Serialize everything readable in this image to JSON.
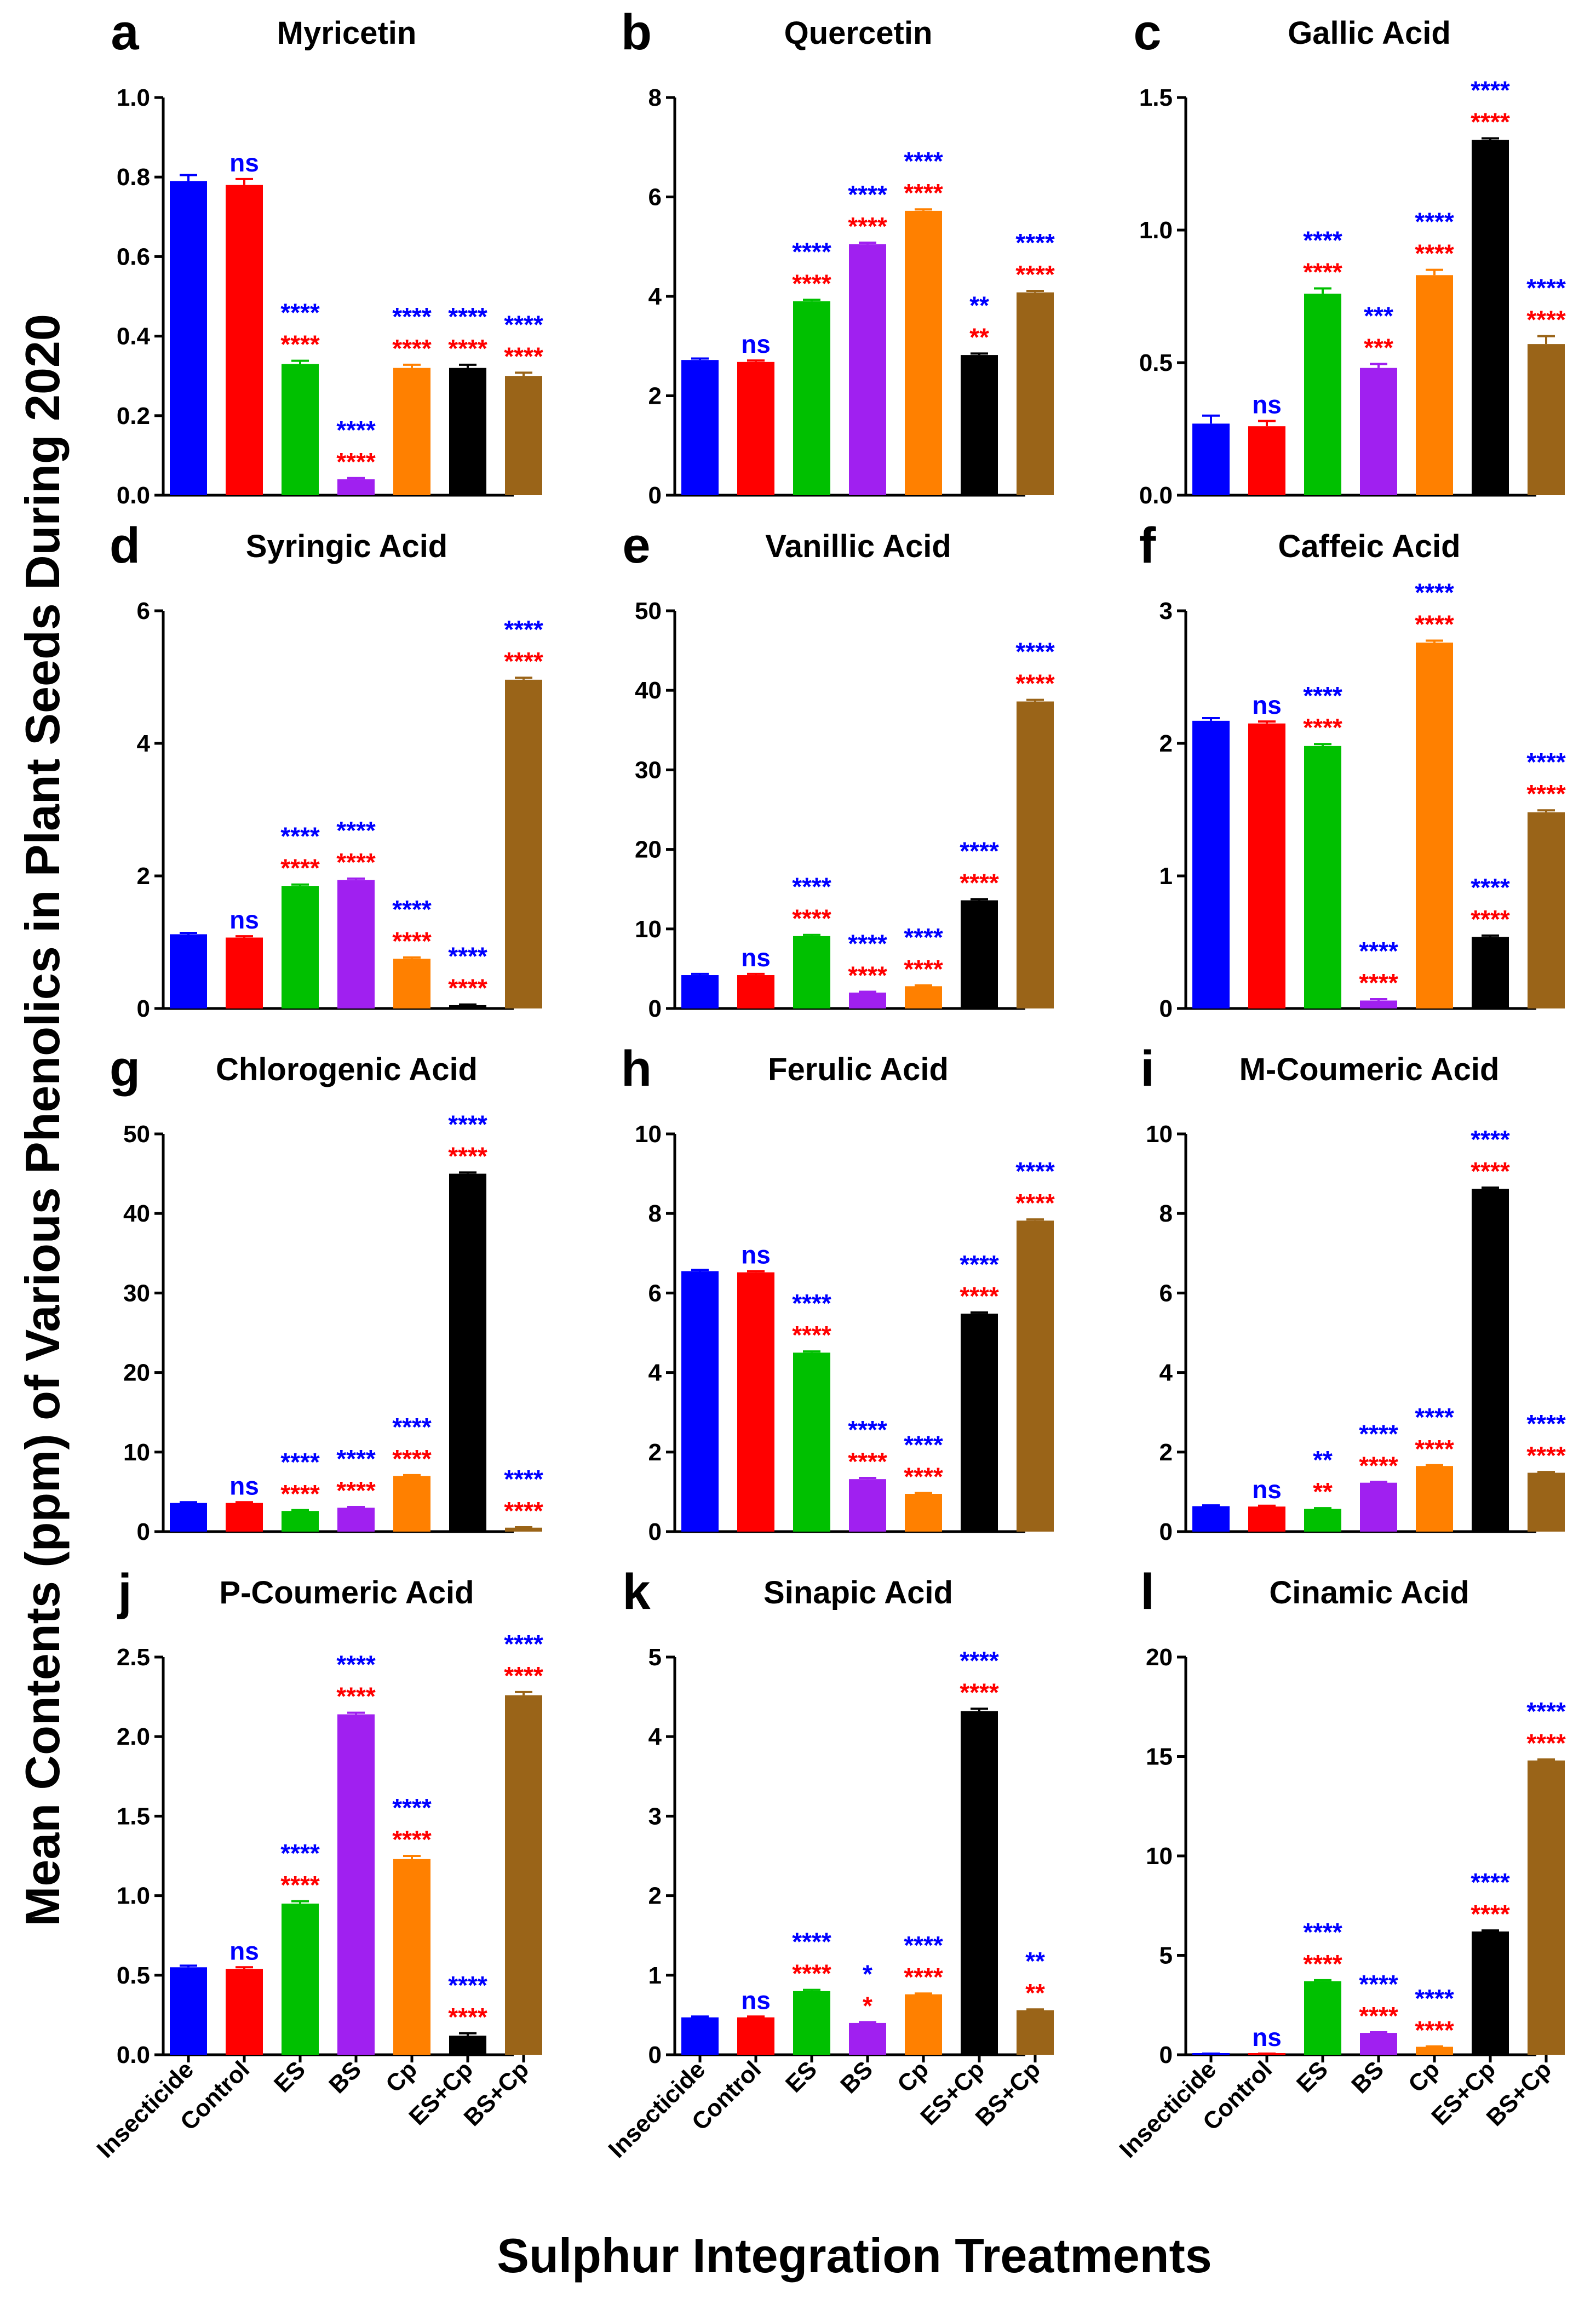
{
  "figure": {
    "ylabel": "Mean Contents (ppm) of Various Phenolics in Plant Seeds During 2020",
    "xlabel": "Sulphur Integration Treatments",
    "colors": {
      "bars": [
        "#0000ff",
        "#ff0000",
        "#00c000",
        "#a020f0",
        "#ff8000",
        "#000000",
        "#9a6418"
      ],
      "sig_top": "#0000ff",
      "sig_bottom": "#ff0000"
    }
  },
  "chart_data": [
    {
      "type": "bar",
      "label": "a",
      "title": "Myricetin",
      "categories": [
        "Insecticide",
        "Control",
        "ES",
        "BS",
        "Cp",
        "ES+Cp",
        "BS+Cp"
      ],
      "values": [
        0.79,
        0.78,
        0.33,
        0.04,
        0.32,
        0.32,
        0.3
      ],
      "errors": [
        0.015,
        0.015,
        0.008,
        0.003,
        0.008,
        0.008,
        0.008
      ],
      "ylim": [
        0,
        1.0
      ],
      "yticks": [
        "0.0",
        "0.2",
        "0.4",
        "0.6",
        "0.8",
        "1.0"
      ],
      "sig_top": [
        "",
        "ns",
        "****",
        "****",
        "****",
        "****",
        "****"
      ],
      "sig_bottom": [
        "",
        "",
        "****",
        "****",
        "****",
        "****",
        "****"
      ],
      "show_xticks": false
    },
    {
      "type": "bar",
      "label": "b",
      "title": "Quercetin",
      "categories": [
        "Insecticide",
        "Control",
        "ES",
        "BS",
        "Cp",
        "ES+Cp",
        "BS+Cp"
      ],
      "values": [
        2.72,
        2.68,
        3.9,
        5.05,
        5.72,
        2.82,
        4.08
      ],
      "errors": [
        0.03,
        0.03,
        0.03,
        0.03,
        0.03,
        0.03,
        0.03
      ],
      "ylim": [
        0,
        8
      ],
      "yticks": [
        "0",
        "2",
        "4",
        "6",
        "8"
      ],
      "sig_top": [
        "",
        "ns",
        "****",
        "****",
        "****",
        "**",
        "****"
      ],
      "sig_bottom": [
        "",
        "",
        "****",
        "****",
        "****",
        "**",
        "****"
      ],
      "show_xticks": false
    },
    {
      "type": "bar",
      "label": "c",
      "title": "Gallic Acid",
      "categories": [
        "Insecticide",
        "Control",
        "ES",
        "BS",
        "Cp",
        "ES+Cp",
        "BS+Cp"
      ],
      "values": [
        0.27,
        0.26,
        0.76,
        0.48,
        0.83,
        1.34,
        0.57
      ],
      "errors": [
        0.03,
        0.02,
        0.02,
        0.015,
        0.02,
        0.006,
        0.03
      ],
      "ylim": [
        0,
        1.5
      ],
      "yticks": [
        "0.0",
        "0.5",
        "1.0",
        "1.5"
      ],
      "sig_top": [
        "",
        "ns",
        "****",
        "***",
        "****",
        "****",
        "****"
      ],
      "sig_bottom": [
        "",
        "",
        "****",
        "***",
        "****",
        "****",
        "****"
      ],
      "show_xticks": false
    },
    {
      "type": "bar",
      "label": "d",
      "title": "Syringic Acid",
      "categories": [
        "Insecticide",
        "Control",
        "ES",
        "BS",
        "Cp",
        "ES+Cp",
        "BS+Cp"
      ],
      "values": [
        1.12,
        1.07,
        1.85,
        1.94,
        0.75,
        0.05,
        4.96
      ],
      "errors": [
        0.02,
        0.02,
        0.02,
        0.02,
        0.02,
        0.01,
        0.03
      ],
      "ylim": [
        0,
        6
      ],
      "yticks": [
        "0",
        "2",
        "4",
        "6"
      ],
      "sig_top": [
        "",
        "ns",
        "****",
        "****",
        "****",
        "****",
        "****"
      ],
      "sig_bottom": [
        "",
        "",
        "****",
        "****",
        "****",
        "****",
        "****"
      ],
      "show_xticks": false
    },
    {
      "type": "bar",
      "label": "e",
      "title": "Vanillic Acid",
      "categories": [
        "Insecticide",
        "Control",
        "ES",
        "BS",
        "Cp",
        "ES+Cp",
        "BS+Cp"
      ],
      "values": [
        4.2,
        4.2,
        9.1,
        2.0,
        2.8,
        13.6,
        38.6
      ],
      "errors": [
        0.15,
        0.15,
        0.15,
        0.1,
        0.1,
        0.15,
        0.2
      ],
      "ylim": [
        0,
        50
      ],
      "yticks": [
        "0",
        "10",
        "20",
        "30",
        "40",
        "50"
      ],
      "sig_top": [
        "",
        "ns",
        "****",
        "****",
        "****",
        "****",
        "****"
      ],
      "sig_bottom": [
        "",
        "",
        "****",
        "****",
        "****",
        "****",
        "****"
      ],
      "show_xticks": false
    },
    {
      "type": "bar",
      "label": "f",
      "title": "Caffeic Acid",
      "categories": [
        "Insecticide",
        "Control",
        "ES",
        "BS",
        "Cp",
        "ES+Cp",
        "BS+Cp"
      ],
      "values": [
        2.17,
        2.15,
        1.98,
        0.06,
        2.76,
        0.54,
        1.48
      ],
      "errors": [
        0.02,
        0.015,
        0.015,
        0.01,
        0.015,
        0.01,
        0.015
      ],
      "ylim": [
        0,
        3
      ],
      "yticks": [
        "0",
        "1",
        "2",
        "3"
      ],
      "sig_top": [
        "",
        "ns",
        "****",
        "****",
        "****",
        "****",
        "****"
      ],
      "sig_bottom": [
        "",
        "",
        "****",
        "****",
        "****",
        "****",
        "****"
      ],
      "show_xticks": false
    },
    {
      "type": "bar",
      "label": "g",
      "title": "Chlorogenic Acid",
      "categories": [
        "Insecticide",
        "Control",
        "ES",
        "BS",
        "Cp",
        "ES+Cp",
        "BS+Cp"
      ],
      "values": [
        3.6,
        3.6,
        2.6,
        3.0,
        7.0,
        45.0,
        0.5
      ],
      "errors": [
        0.1,
        0.1,
        0.1,
        0.1,
        0.1,
        0.15,
        0.05
      ],
      "ylim": [
        0,
        50
      ],
      "yticks": [
        "0",
        "10",
        "20",
        "30",
        "40",
        "50"
      ],
      "sig_top": [
        "",
        "ns",
        "****",
        "****",
        "****",
        "****",
        "****"
      ],
      "sig_bottom": [
        "",
        "",
        "****",
        "****",
        "****",
        "****",
        "****"
      ],
      "show_xticks": false
    },
    {
      "type": "bar",
      "label": "h",
      "title": "Ferulic Acid",
      "categories": [
        "Insecticide",
        "Control",
        "ES",
        "BS",
        "Cp",
        "ES+Cp",
        "BS+Cp"
      ],
      "values": [
        6.55,
        6.52,
        4.5,
        1.32,
        0.95,
        5.48,
        7.82
      ],
      "errors": [
        0.03,
        0.03,
        0.03,
        0.03,
        0.02,
        0.03,
        0.03
      ],
      "ylim": [
        0,
        10
      ],
      "yticks": [
        "0",
        "2",
        "4",
        "6",
        "8",
        "10"
      ],
      "sig_top": [
        "",
        "ns",
        "****",
        "****",
        "****",
        "****",
        "****"
      ],
      "sig_bottom": [
        "",
        "",
        "****",
        "****",
        "****",
        "****",
        "****"
      ],
      "show_xticks": false
    },
    {
      "type": "bar",
      "label": "i",
      "title": "M-Coumeric Acid",
      "categories": [
        "Insecticide",
        "Control",
        "ES",
        "BS",
        "Cp",
        "ES+Cp",
        "BS+Cp"
      ],
      "values": [
        0.64,
        0.63,
        0.57,
        1.23,
        1.65,
        8.62,
        1.48
      ],
      "errors": [
        0.02,
        0.02,
        0.02,
        0.02,
        0.02,
        0.03,
        0.02
      ],
      "ylim": [
        0,
        10
      ],
      "yticks": [
        "0",
        "2",
        "4",
        "6",
        "8",
        "10"
      ],
      "sig_top": [
        "",
        "ns",
        "**",
        "****",
        "****",
        "****",
        "****"
      ],
      "sig_bottom": [
        "",
        "",
        "**",
        "****",
        "****",
        "****",
        "****"
      ],
      "show_xticks": false
    },
    {
      "type": "bar",
      "label": "j",
      "title": "P-Coumeric Acid",
      "categories": [
        "Insecticide",
        "Control",
        "ES",
        "BS",
        "Cp",
        "ES+Cp",
        "BS+Cp"
      ],
      "values": [
        0.55,
        0.54,
        0.95,
        2.14,
        1.23,
        0.12,
        2.26
      ],
      "errors": [
        0.01,
        0.01,
        0.015,
        0.01,
        0.02,
        0.015,
        0.02
      ],
      "ylim": [
        0,
        2.5
      ],
      "yticks": [
        "0.0",
        "0.5",
        "1.0",
        "1.5",
        "2.0",
        "2.5"
      ],
      "sig_top": [
        "",
        "ns",
        "****",
        "****",
        "****",
        "****",
        "****"
      ],
      "sig_bottom": [
        "",
        "",
        "****",
        "****",
        "****",
        "****",
        "****"
      ],
      "show_xticks": true
    },
    {
      "type": "bar",
      "label": "k",
      "title": "Sinapic Acid",
      "categories": [
        "Insecticide",
        "Control",
        "ES",
        "BS",
        "Cp",
        "ES+Cp",
        "BS+Cp"
      ],
      "values": [
        0.47,
        0.47,
        0.8,
        0.4,
        0.76,
        4.32,
        0.56
      ],
      "errors": [
        0.01,
        0.01,
        0.015,
        0.01,
        0.01,
        0.03,
        0.01
      ],
      "ylim": [
        0,
        5
      ],
      "yticks": [
        "0",
        "1",
        "2",
        "3",
        "4",
        "5"
      ],
      "sig_top": [
        "",
        "ns",
        "****",
        "*",
        "****",
        "****",
        "**"
      ],
      "sig_bottom": [
        "",
        "",
        "****",
        "*",
        "****",
        "****",
        "**"
      ],
      "show_xticks": true
    },
    {
      "type": "bar",
      "label": "l",
      "title": "Cinamic Acid",
      "categories": [
        "Insecticide",
        "Control",
        "ES",
        "BS",
        "Cp",
        "ES+Cp",
        "BS+Cp"
      ],
      "values": [
        0.05,
        0.05,
        3.7,
        1.1,
        0.4,
        6.2,
        14.8
      ],
      "errors": [
        0.01,
        0.01,
        0.05,
        0.03,
        0.02,
        0.05,
        0.05
      ],
      "ylim": [
        0,
        20
      ],
      "yticks": [
        "0",
        "5",
        "10",
        "15",
        "20"
      ],
      "sig_top": [
        "",
        "ns",
        "****",
        "****",
        "****",
        "****",
        "****"
      ],
      "sig_bottom": [
        "",
        "",
        "****",
        "****",
        "****",
        "****",
        "****"
      ],
      "show_xticks": true
    }
  ]
}
